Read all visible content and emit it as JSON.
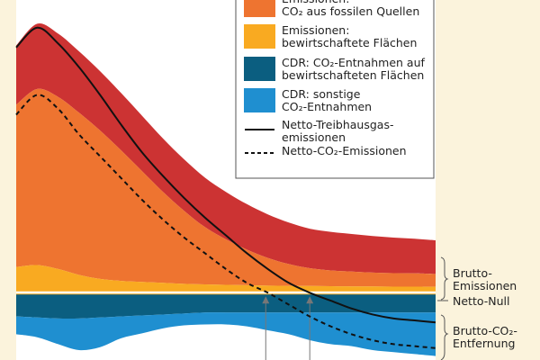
{
  "chart_data": {
    "type": "area",
    "colors": {
      "page_bg": "#fbf3dc",
      "plot_bg": "#ffffff",
      "emissions_other": "#cc3333",
      "emissions_fossil": "#ee7430",
      "emissions_managed": "#f9aa21",
      "cdr_managed": "#0b5e80",
      "cdr_other": "#1f8fd0",
      "net_ghg": "#111111",
      "net_co2": "#111111"
    },
    "legend": {
      "items": [
        {
          "key": "emissions_fossil",
          "line1": "Emissionen:",
          "line2": "CO₂ aus fossilen Quellen",
          "swatch": "emissions_fossil"
        },
        {
          "key": "emissions_managed",
          "line1": "Emissionen:",
          "line2": "bewirtschaftete Flächen",
          "swatch": "emissions_managed"
        },
        {
          "key": "cdr_managed",
          "line1": "CDR: CO₂-Entnahmen auf",
          "line2": "bewirtschafteten Flächen",
          "swatch": "cdr_managed"
        },
        {
          "key": "cdr_other",
          "line1": "CDR: sonstige",
          "line2": "CO₂-Entnahmen",
          "swatch": "cdr_other"
        },
        {
          "key": "net_ghg",
          "line1": "Netto-Treibhausgas-",
          "line2": "emissionen",
          "swatch": "solid-line"
        },
        {
          "key": "net_co2",
          "line1": "Netto-CO₂-Emissionen",
          "line2": "",
          "swatch": "dashed-line"
        }
      ]
    },
    "side_labels": {
      "gross_emissions": [
        "Brutto-",
        "Emissionen"
      ],
      "net_zero": "Netto-Null",
      "gross_removal": [
        "Brutto-CO₂-",
        "Entfernung"
      ]
    },
    "x": [
      0,
      0.5,
      1,
      1.5,
      2,
      2.5,
      3,
      3.5,
      4,
      4.5,
      5,
      5.5,
      6,
      6.5,
      7,
      7.5,
      8,
      8.5,
      9,
      9.5,
      10
    ],
    "series": [
      {
        "key": "emissions_managed",
        "values": [
          1.3,
          1.4,
          1.2,
          0.9,
          0.7,
          0.6,
          0.55,
          0.5,
          0.45,
          0.42,
          0.4,
          0.38,
          0.36,
          0.35,
          0.34,
          0.33,
          0.32,
          0.32,
          0.31,
          0.31,
          0.3
        ]
      },
      {
        "key": "emissions_fossil",
        "values": [
          8.2,
          8.9,
          8.7,
          8.2,
          7.5,
          6.6,
          5.6,
          4.6,
          3.7,
          2.9,
          2.3,
          1.8,
          1.4,
          1.1,
          0.9,
          0.8,
          0.75,
          0.7,
          0.68,
          0.67,
          0.65
        ]
      },
      {
        "key": "emissions_other",
        "values": [
          3.0,
          3.3,
          3.2,
          3.1,
          3.0,
          2.9,
          2.8,
          2.7,
          2.6,
          2.5,
          2.4,
          2.3,
          2.2,
          2.1,
          2.0,
          1.95,
          1.9,
          1.85,
          1.8,
          1.75,
          1.7
        ]
      },
      {
        "key": "cdr_managed",
        "values": [
          -1.2,
          -1.25,
          -1.3,
          -1.3,
          -1.25,
          -1.2,
          -1.15,
          -1.1,
          -1.05,
          -1.0,
          -1.0,
          -1.0,
          -1.0,
          -1.0,
          -1.0,
          -1.0,
          -1.0,
          -1.0,
          -1.0,
          -1.0,
          -1.0
        ]
      },
      {
        "key": "cdr_other",
        "values": [
          -0.9,
          -1.0,
          -1.3,
          -1.6,
          -1.5,
          -1.1,
          -0.9,
          -0.7,
          -0.6,
          -0.6,
          -0.6,
          -0.7,
          -0.9,
          -1.1,
          -1.4,
          -1.6,
          -1.7,
          -1.9,
          -2.0,
          -2.1,
          -2.2
        ]
      }
    ],
    "lines": [
      {
        "key": "net_ghg",
        "style": "solid",
        "values": [
          12.4,
          13.4,
          12.6,
          11.4,
          10.0,
          8.5,
          7.1,
          5.9,
          4.8,
          3.8,
          2.9,
          2.0,
          1.2,
          0.5,
          0.0,
          -0.4,
          -0.8,
          -1.1,
          -1.3,
          -1.4,
          -1.5
        ]
      },
      {
        "key": "net_co2",
        "style": "dashed",
        "values": [
          9.0,
          10.0,
          9.3,
          8.0,
          6.9,
          5.8,
          4.7,
          3.7,
          2.8,
          2.0,
          1.2,
          0.5,
          0.0,
          -0.6,
          -1.2,
          -1.7,
          -2.1,
          -2.4,
          -2.6,
          -2.7,
          -2.8
        ]
      }
    ],
    "annotation_x": [
      5.95,
      7.0
    ],
    "xlim": [
      0,
      10
    ],
    "ylim": [
      -3.4,
      14.8
    ],
    "grid": false
  }
}
